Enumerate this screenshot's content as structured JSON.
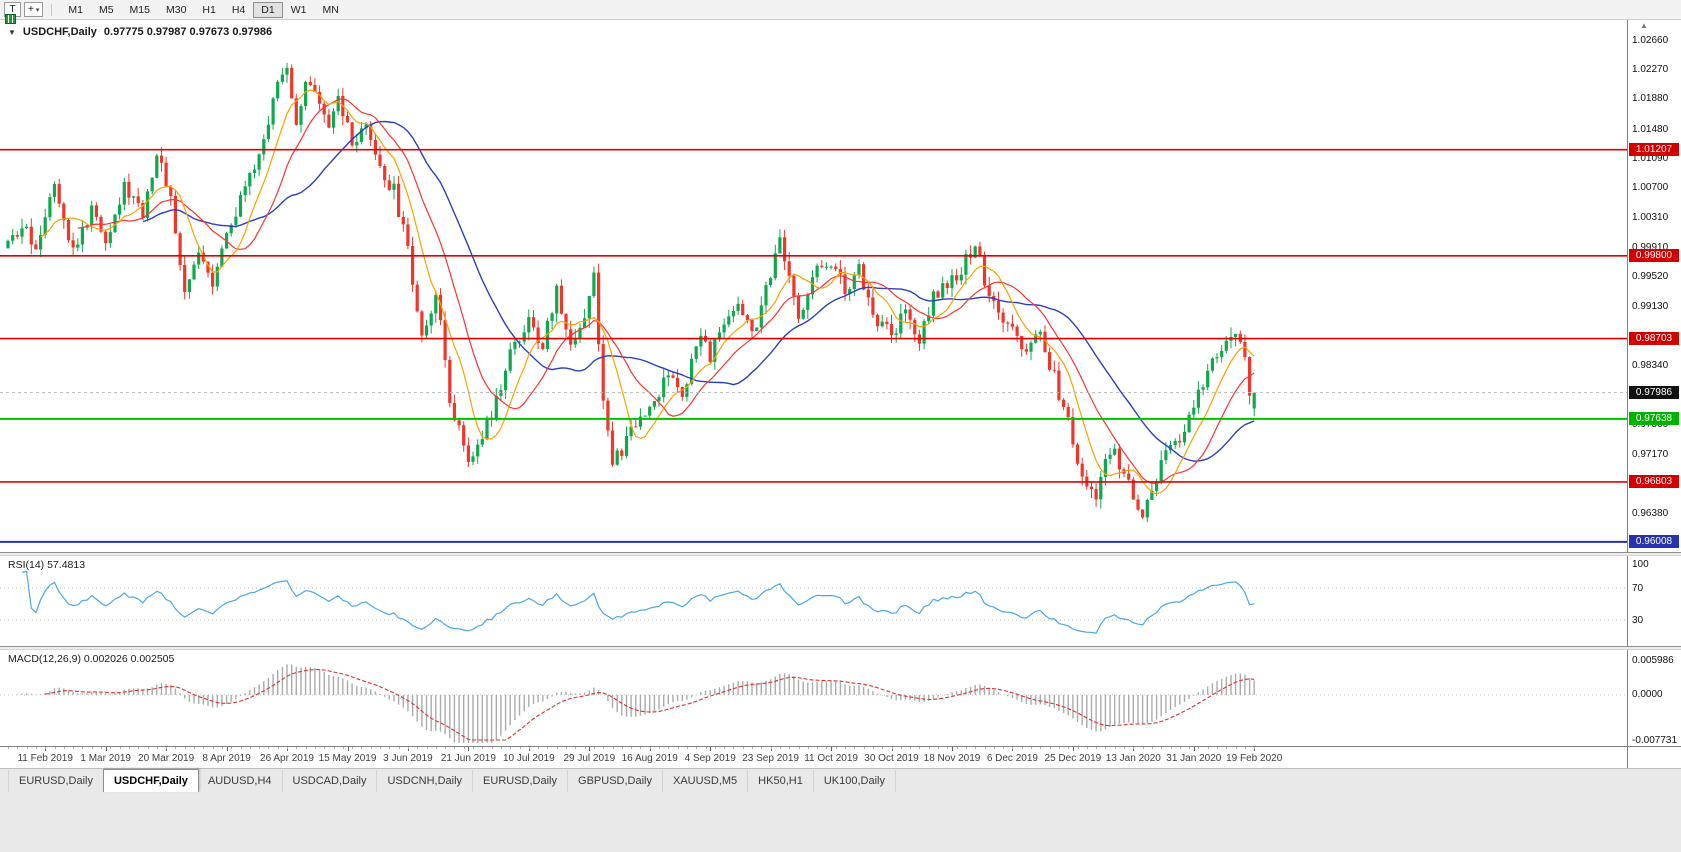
{
  "icons": {
    "collapse": "▼",
    "crosshair": "+",
    "dropdown": "▾",
    "shift_marker": "▲"
  },
  "colors": {
    "candle_up": "#0fa84e",
    "candle_down": "#f0352b",
    "ma_fast": "#ffa000",
    "ma_mid": "#ff3333",
    "ma_slow": "#2e3ec4",
    "line_red": "#e30000",
    "line_green": "#00c000",
    "line_blue": "#2733ad",
    "macd_bar": "#ababab",
    "macd_signal": "#e03030"
  },
  "toolbar": {
    "tool_button": "T",
    "timeframes": [
      "M1",
      "M5",
      "M15",
      "M30",
      "H1",
      "H4",
      "D1",
      "W1",
      "MN"
    ],
    "active_timeframe": "D1"
  },
  "chart": {
    "symbol_title": "USDCHF,Daily",
    "ohlc_text": "0.97775 0.97987 0.97673 0.97986",
    "current_price": "0.97986",
    "price_axis_labels": [
      "1.02660",
      "1.02270",
      "1.01880",
      "1.01480",
      "1.01090",
      "1.00700",
      "1.00310",
      "0.99910",
      "0.99520",
      "0.99130",
      "0.98340",
      "0.97560",
      "0.97170",
      "0.96380"
    ],
    "hlines": [
      {
        "value": "1.01207",
        "price": 1.01207,
        "color": "red",
        "type": "resistance"
      },
      {
        "value": "0.99800",
        "price": 0.998,
        "color": "red",
        "type": "resistance"
      },
      {
        "value": "0.98703",
        "price": 0.98703,
        "color": "red",
        "type": "resistance"
      },
      {
        "value": "0.97638",
        "price": 0.97638,
        "color": "green",
        "type": "support"
      },
      {
        "value": "0.96803",
        "price": 0.96803,
        "color": "red",
        "type": "support"
      },
      {
        "value": "0.96008",
        "price": 0.96008,
        "color": "blue",
        "type": "support"
      }
    ],
    "dates": [
      "11 Feb 2019",
      "1 Mar 2019",
      "20 Mar 2019",
      "8 Apr 2019",
      "26 Apr 2019",
      "15 May 2019",
      "3 Jun 2019",
      "21 Jun 2019",
      "10 Jul 2019",
      "29 Jul 2019",
      "16 Aug 2019",
      "4 Sep 2019",
      "23 Sep 2019",
      "11 Oct 2019",
      "30 Oct 2019",
      "18 Nov 2019",
      "6 Dec 2019",
      "25 Dec 2019",
      "13 Jan 2020",
      "31 Jan 2020",
      "19 Feb 2020"
    ]
  },
  "chart_data": {
    "type": "candlestick",
    "symbol": "USDCHF",
    "timeframe": "Daily",
    "x_range": [
      "11 Feb 2019",
      "19 Feb 2020"
    ],
    "num_candles": 269,
    "candle_spacing": 4.65,
    "x0": 8,
    "date_tick_start": 8,
    "date_tick_step": 13,
    "scale": {
      "price_top": 1.0282,
      "price_bottom": 0.959
    },
    "last_candle": {
      "open": 0.97775,
      "high": 0.97987,
      "low": 0.97673,
      "close": 0.97986
    },
    "moving_averages": [
      {
        "period": 8,
        "color": "#ffa000"
      },
      {
        "period": 16,
        "color": "#ff3333"
      },
      {
        "period": 30,
        "color": "#2e3ec4"
      }
    ],
    "price_anchors": [
      [
        0,
        0.999
      ],
      [
        3,
        1.0015
      ],
      [
        6,
        0.9995
      ],
      [
        8,
        1.0035
      ],
      [
        10,
        1.0085
      ],
      [
        14,
        0.9985
      ],
      [
        18,
        1.004
      ],
      [
        21,
        1.0005
      ],
      [
        25,
        1.007
      ],
      [
        29,
        1.004
      ],
      [
        32,
        1.0115
      ],
      [
        35,
        1.006
      ],
      [
        38,
        0.9925
      ],
      [
        41,
        0.999
      ],
      [
        44,
        0.995
      ],
      [
        47,
        1.001
      ],
      [
        51,
        1.0065
      ],
      [
        55,
        1.013
      ],
      [
        58,
        1.021
      ],
      [
        60,
        1.023
      ],
      [
        62,
        1.016
      ],
      [
        64,
        1.0215
      ],
      [
        67,
        1.0175
      ],
      [
        69,
        1.0145
      ],
      [
        71,
        1.019
      ],
      [
        74,
        1.0125
      ],
      [
        77,
        1.0145
      ],
      [
        80,
        1.0095
      ],
      [
        83,
        1.0065
      ],
      [
        86,
        0.9985
      ],
      [
        89,
        0.9875
      ],
      [
        92,
        0.993
      ],
      [
        95,
        0.9795
      ],
      [
        99,
        0.9705
      ],
      [
        102,
        0.9745
      ],
      [
        106,
        0.98
      ],
      [
        109,
        0.987
      ],
      [
        112,
        0.989
      ],
      [
        115,
        0.986
      ],
      [
        118,
        0.9935
      ],
      [
        121,
        0.986
      ],
      [
        124,
        0.9905
      ],
      [
        126,
        0.9955
      ],
      [
        128,
        0.979
      ],
      [
        130,
        0.97
      ],
      [
        133,
        0.9735
      ],
      [
        136,
        0.9765
      ],
      [
        139,
        0.979
      ],
      [
        142,
        0.982
      ],
      [
        145,
        0.9795
      ],
      [
        148,
        0.987
      ],
      [
        151,
        0.985
      ],
      [
        154,
        0.9895
      ],
      [
        157,
        0.992
      ],
      [
        160,
        0.9875
      ],
      [
        163,
        0.9935
      ],
      [
        166,
        0.9995
      ],
      [
        168,
        0.9945
      ],
      [
        170,
        0.9895
      ],
      [
        173,
        0.9955
      ],
      [
        177,
        0.9975
      ],
      [
        180,
        0.993
      ],
      [
        183,
        0.996
      ],
      [
        186,
        0.9905
      ],
      [
        190,
        0.987
      ],
      [
        193,
        0.991
      ],
      [
        196,
        0.987
      ],
      [
        199,
        0.993
      ],
      [
        203,
        0.9945
      ],
      [
        206,
        0.9975
      ],
      [
        208,
        1.0
      ],
      [
        211,
        0.992
      ],
      [
        214,
        0.989
      ],
      [
        216,
        0.988
      ],
      [
        219,
        0.985
      ],
      [
        222,
        0.9875
      ],
      [
        225,
        0.982
      ],
      [
        228,
        0.976
      ],
      [
        230,
        0.97
      ],
      [
        232,
        0.968
      ],
      [
        234,
        0.9665
      ],
      [
        236,
        0.9715
      ],
      [
        238,
        0.9725
      ],
      [
        240,
        0.969
      ],
      [
        242,
        0.966
      ],
      [
        244,
        0.9635
      ],
      [
        246,
        0.9665
      ],
      [
        248,
        0.9705
      ],
      [
        251,
        0.973
      ],
      [
        254,
        0.9765
      ],
      [
        257,
        0.9805
      ],
      [
        259,
        0.9835
      ],
      [
        262,
        0.987
      ],
      [
        265,
        0.9865
      ],
      [
        267,
        0.9805
      ],
      [
        268,
        0.9799
      ]
    ]
  },
  "rsi": {
    "label": "RSI(14) 57.4813",
    "period": 14,
    "value": "57.4813",
    "color": "#4da6e8",
    "axis_labels": [
      "100",
      "70",
      "30"
    ],
    "levels": [
      70,
      30
    ]
  },
  "macd": {
    "label": "MACD(12,26,9) 0.002026 0.002505",
    "fast": 12,
    "slow": 26,
    "signal": 9,
    "values": "0.002026 0.002505",
    "axis_labels": [
      {
        "text": "0.005986",
        "value": 0.005986
      },
      {
        "text": "0.0000",
        "value": 0
      },
      {
        "text": "-0.007731",
        "value": -0.007731
      }
    ]
  },
  "tabs": [
    {
      "label": "EURUSD,Daily",
      "active": false
    },
    {
      "label": "USDCHF,Daily",
      "active": true
    },
    {
      "label": "AUDUSD,H4",
      "active": false
    },
    {
      "label": "USDCAD,Daily",
      "active": false
    },
    {
      "label": "USDCNH,Daily",
      "active": false
    },
    {
      "label": "EURUSD,Daily",
      "active": false
    },
    {
      "label": "GBPUSD,Daily",
      "active": false
    },
    {
      "label": "XAUUSD,M5",
      "active": false
    },
    {
      "label": "HK50,H1",
      "active": false
    },
    {
      "label": "UK100,Daily",
      "active": false
    }
  ]
}
